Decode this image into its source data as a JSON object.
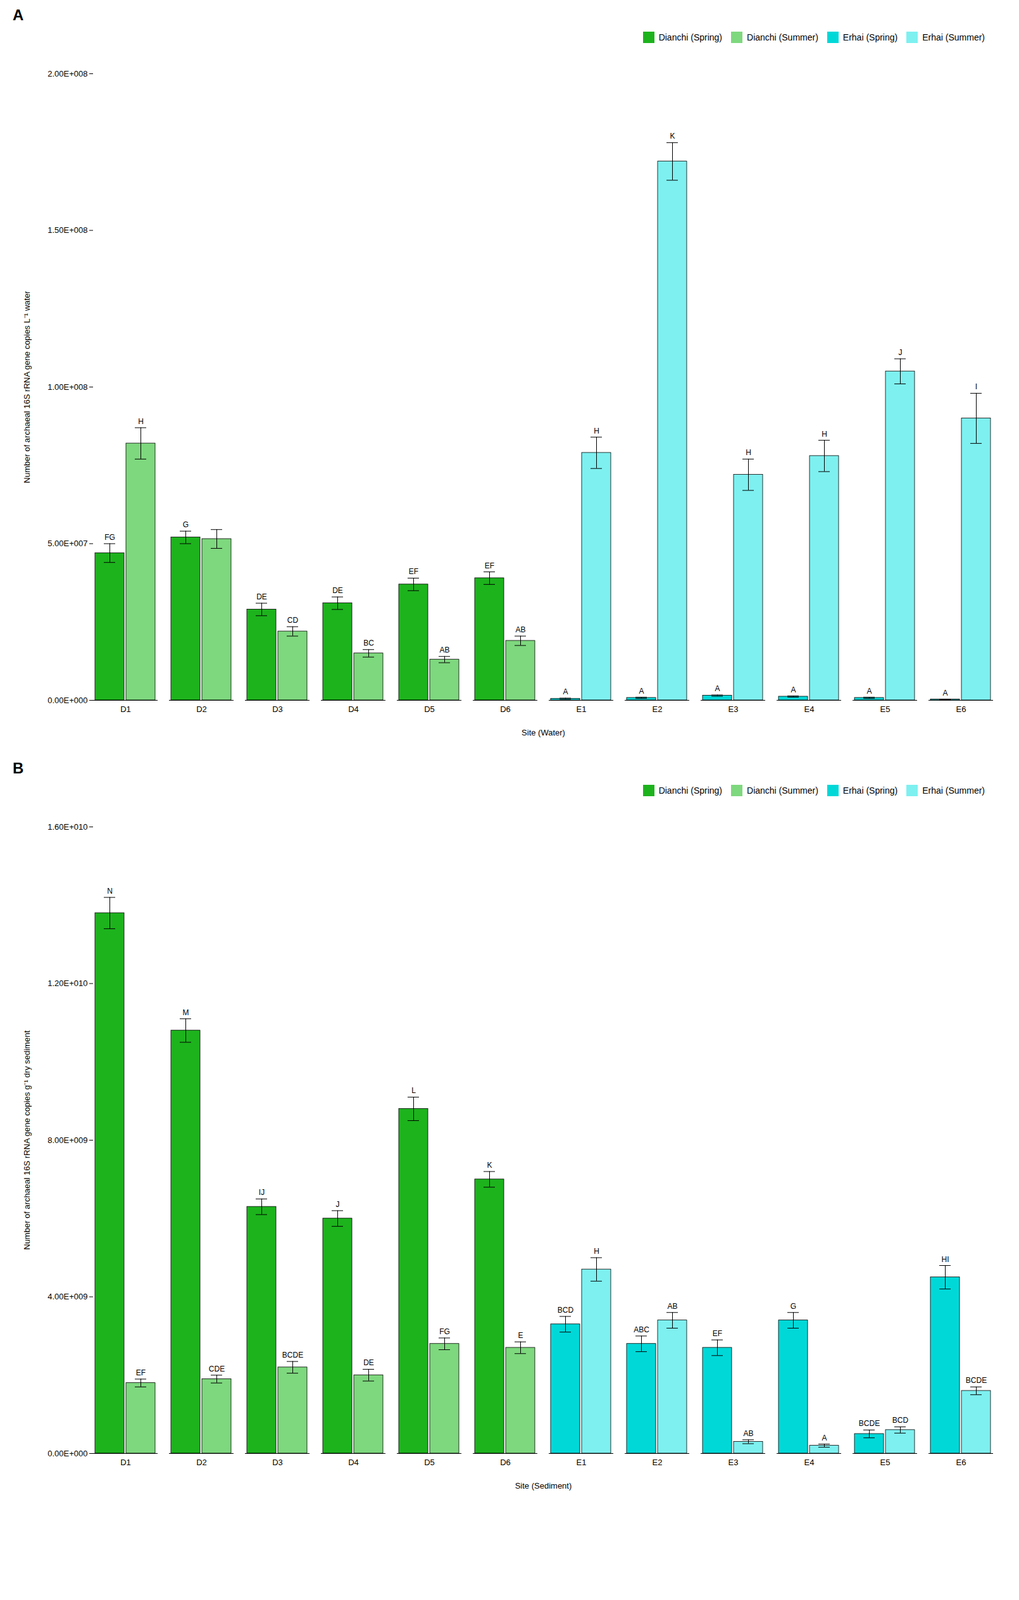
{
  "chart_data": [
    {
      "type": "bar",
      "title": "A",
      "categories": [
        "D1",
        "D2",
        "D3",
        "D4",
        "D5",
        "D6",
        "E1",
        "E2",
        "E3",
        "E4",
        "E5",
        "E6"
      ],
      "series": [
        {
          "name": "Dianchi (Spring)",
          "color": "#1db31d",
          "values": [
            47000000.0,
            52000000.0,
            29000000.0,
            31000000.0,
            37000000.0,
            39000000.0,
            null,
            null,
            null,
            null,
            null,
            null
          ],
          "errors": [
            3000000.0,
            2000000.0,
            2000000.0,
            2000000.0,
            2000000.0,
            2000000.0,
            null,
            null,
            null,
            null,
            null,
            null
          ],
          "labels": [
            "FG",
            "G",
            "DE",
            "DE",
            "EF",
            "EF",
            null,
            null,
            null,
            null,
            null,
            null
          ]
        },
        {
          "name": "Dianchi (Summer)",
          "color": "#7ed87e",
          "values": [
            82000000.0,
            51500000.0,
            22000000.0,
            15000000.0,
            13000000.0,
            19000000.0,
            null,
            null,
            null,
            null,
            null,
            null
          ],
          "errors": [
            5000000.0,
            3000000.0,
            1500000.0,
            1200000.0,
            1000000.0,
            1500000.0,
            null,
            null,
            null,
            null,
            null,
            null
          ],
          "labels": [
            "H",
            null,
            "CD",
            "BC",
            "AB",
            "AB",
            null,
            null,
            null,
            null,
            null,
            null
          ]
        },
        {
          "name": "Erhai (Spring)",
          "color": "#00d8d8",
          "values": [
            null,
            null,
            null,
            null,
            null,
            null,
            500000.0,
            800000.0,
            1500000.0,
            1200000.0,
            800000.0,
            300000.0
          ],
          "errors": [
            null,
            null,
            null,
            null,
            null,
            null,
            200000.0,
            200000.0,
            200000.0,
            200000.0,
            200000.0,
            100000.0
          ],
          "labels": [
            null,
            null,
            null,
            null,
            null,
            null,
            "A",
            "A",
            "A",
            "A",
            "A",
            "A"
          ]
        },
        {
          "name": "Erhai (Summer)",
          "color": "#7ef0f0",
          "values": [
            null,
            null,
            null,
            null,
            null,
            null,
            79000000.0,
            172000000.0,
            72000000.0,
            78000000.0,
            105000000.0,
            90000000.0
          ],
          "errors": [
            null,
            null,
            null,
            null,
            null,
            null,
            5000000.0,
            6000000.0,
            5000000.0,
            5000000.0,
            4000000.0,
            8000000.0
          ],
          "labels": [
            null,
            null,
            null,
            null,
            null,
            null,
            "H",
            "K",
            "H",
            "H",
            "J",
            "I"
          ]
        }
      ],
      "xlabel": "Site (Water)",
      "ylabel": "Number of archaeal 16S rRNA gene copies L⁻¹ water",
      "ylim": [
        0,
        200000000.0
      ],
      "yticks": [
        {
          "value": 0,
          "label": "0.00E+000"
        },
        {
          "value": 50000000.0,
          "label": "5.00E+007"
        },
        {
          "value": 100000000.0,
          "label": "1.00E+008"
        },
        {
          "value": 150000000.0,
          "label": "1.50E+008"
        },
        {
          "value": 200000000.0,
          "label": "2.00E+008"
        }
      ],
      "legend": "upper right"
    },
    {
      "type": "bar",
      "title": "B",
      "categories": [
        "D1",
        "D2",
        "D3",
        "D4",
        "D5",
        "D6",
        "E1",
        "E2",
        "E3",
        "E4",
        "E5",
        "E6"
      ],
      "series": [
        {
          "name": "Dianchi (Spring)",
          "color": "#1db31d",
          "values": [
            13800000000.0,
            10800000000.0,
            6300000000.0,
            6000000000.0,
            8800000000.0,
            7000000000.0,
            null,
            null,
            null,
            null,
            null,
            null
          ],
          "errors": [
            400000000.0,
            300000000.0,
            200000000.0,
            200000000.0,
            300000000.0,
            200000000.0,
            null,
            null,
            null,
            null,
            null,
            null
          ],
          "labels": [
            "N",
            "M",
            "IJ",
            "J",
            "L",
            "K",
            null,
            null,
            null,
            null,
            null,
            null
          ]
        },
        {
          "name": "Dianchi (Summer)",
          "color": "#7ed87e",
          "values": [
            1800000000.0,
            1900000000.0,
            2200000000.0,
            2000000000.0,
            2800000000.0,
            2700000000.0,
            null,
            null,
            null,
            null,
            null,
            null
          ],
          "errors": [
            100000000.0,
            100000000.0,
            150000000.0,
            150000000.0,
            150000000.0,
            150000000.0,
            null,
            null,
            null,
            null,
            null,
            null
          ],
          "labels": [
            "EF",
            "CDE",
            "BCDE",
            "DE",
            "FG",
            "E",
            null,
            null,
            null,
            null,
            null,
            null
          ]
        },
        {
          "name": "Erhai (Spring)",
          "color": "#00d8d8",
          "values": [
            null,
            null,
            null,
            null,
            null,
            null,
            3300000000.0,
            2800000000.0,
            2700000000.0,
            3400000000.0,
            500000000.0,
            4500000000.0
          ],
          "errors": [
            null,
            null,
            null,
            null,
            null,
            null,
            200000000.0,
            200000000.0,
            200000000.0,
            200000000.0,
            100000000.0,
            300000000.0
          ],
          "labels": [
            null,
            null,
            null,
            null,
            null,
            null,
            "BCD",
            "ABC",
            "EF",
            "G",
            "BCDE",
            "HI"
          ]
        },
        {
          "name": "Erhai (Summer)",
          "color": "#7ef0f0",
          "values": [
            null,
            null,
            null,
            null,
            null,
            null,
            4700000000.0,
            3400000000.0,
            300000000.0,
            200000000.0,
            600000000.0,
            1600000000.0
          ],
          "errors": [
            null,
            null,
            null,
            null,
            null,
            null,
            300000000.0,
            200000000.0,
            50000000.0,
            40000000.0,
            80000000.0,
            100000000.0
          ],
          "labels": [
            null,
            null,
            null,
            null,
            null,
            null,
            "H",
            "AB",
            "AB",
            "A",
            "BCD",
            "BCDE"
          ]
        }
      ],
      "xlabel": "Site (Sediment)",
      "ylabel": "Number of archaeal 16S rRNA gene copies g⁻¹ dry sediment",
      "ylim": [
        0,
        16000000000.0
      ],
      "yticks": [
        {
          "value": 0,
          "label": "0.00E+000"
        },
        {
          "value": 4000000000.0,
          "label": "4.00E+009"
        },
        {
          "value": 8000000000.0,
          "label": "8.00E+009"
        },
        {
          "value": 12000000000.0,
          "label": "1.20E+010"
        },
        {
          "value": 16000000000.0,
          "label": "1.60E+010"
        }
      ],
      "legend": "upper right"
    }
  ]
}
